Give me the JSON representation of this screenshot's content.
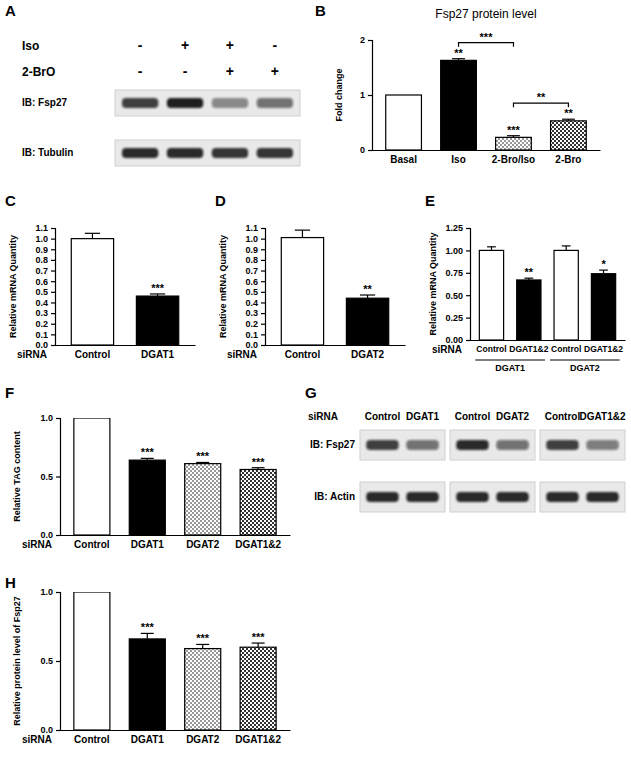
{
  "chart_data": [
    {
      "type": "blot",
      "panel": "A",
      "conditions": [
        {
          "label": "Iso",
          "states": [
            "-",
            "+",
            "+",
            "-"
          ]
        },
        {
          "label": "2-BrO",
          "states": [
            "-",
            "-",
            "+",
            "+"
          ]
        }
      ],
      "row_labels": [
        "IB: Fsp27",
        "IB: Tubulin"
      ],
      "blots": [
        {
          "rows": [
            {
              "intensities": [
                0.85,
                1.0,
                0.5,
                0.6
              ]
            },
            {
              "intensities": [
                0.95,
                0.95,
                0.9,
                0.9
              ]
            }
          ]
        }
      ]
    },
    {
      "type": "bar",
      "panel": "B",
      "title": "Fsp27 protein level",
      "ylabel": "Fold change",
      "categories": [
        "Basal",
        "Iso",
        "2-Bro/Iso",
        "2-Bro"
      ],
      "values": [
        1.0,
        1.63,
        0.23,
        0.53
      ],
      "errors": [
        null,
        0.03,
        0.03,
        0.03
      ],
      "significance": [
        null,
        "**",
        "***",
        "**"
      ],
      "comparisons": [
        {
          "between": [
            "Iso",
            "2-Bro/Iso"
          ],
          "label": "***"
        },
        {
          "between": [
            "2-Bro/Iso",
            "2-Bro"
          ],
          "label": "**"
        }
      ],
      "colors": [
        "#ffffff",
        "#000000",
        "#d9d9d9",
        "#333333"
      ],
      "ylim": [
        0,
        2
      ],
      "yticks": [
        0,
        1,
        2
      ]
    },
    {
      "type": "bar",
      "panel": "C",
      "ylabel": "Relative mRNA Quantity",
      "xlabel": "siRNA",
      "categories": [
        "Control",
        "DGAT1"
      ],
      "values": [
        1.0,
        0.46
      ],
      "errors": [
        0.05,
        0.02
      ],
      "significance": [
        null,
        "***"
      ],
      "colors": [
        "#ffffff",
        "#000000"
      ],
      "ylim": [
        0,
        1.1
      ],
      "yticks": [
        {
          "value": 0,
          "label": "0.0"
        },
        0.1,
        0.2,
        0.3,
        0.4,
        0.5,
        0.6,
        0.7,
        0.8,
        0.9,
        {
          "value": 1,
          "label": "1.0"
        },
        1.1
      ]
    },
    {
      "type": "bar",
      "panel": "D",
      "ylabel": "Relative mRNA Quantity",
      "xlabel": "siRNA",
      "categories": [
        "Control",
        "DGAT2"
      ],
      "values": [
        1.01,
        0.44
      ],
      "errors": [
        0.07,
        0.03
      ],
      "significance": [
        null,
        "**"
      ],
      "colors": [
        "#ffffff",
        "#000000"
      ],
      "ylim": [
        0,
        1.1
      ],
      "yticks": [
        {
          "value": 0,
          "label": "0.0"
        },
        0.1,
        0.2,
        0.3,
        0.4,
        0.5,
        0.6,
        0.7,
        0.8,
        0.9,
        {
          "value": 1,
          "label": "1.0"
        },
        1.1
      ]
    },
    {
      "type": "bar",
      "panel": "E",
      "ylabel": "Relative mRNA Quantity",
      "xlabel": "siRNA",
      "categories": [
        "Control",
        "DGAT1&2",
        "Control",
        "DGAT1&2"
      ],
      "groups": [
        "DGAT1",
        "DGAT1",
        "DGAT2",
        "DGAT2"
      ],
      "values": [
        1.0,
        0.67,
        1.0,
        0.74
      ],
      "errors": [
        0.04,
        0.02,
        0.05,
        0.04
      ],
      "significance": [
        null,
        "**",
        null,
        "*"
      ],
      "colors": [
        "#ffffff",
        "#000000",
        "#ffffff",
        "#000000"
      ],
      "ylim": [
        0,
        1.25
      ],
      "yticks": [
        {
          "value": 0,
          "label": "0.00"
        },
        0.25,
        {
          "value": 0.5,
          "label": "0.50"
        },
        0.75,
        {
          "value": 1,
          "label": "1.00"
        },
        1.25
      ]
    },
    {
      "type": "bar",
      "panel": "F",
      "ylabel": "Relative TAG content",
      "xlabel": "siRNA",
      "categories": [
        "Control",
        "DGAT1",
        "DGAT2",
        "DGAT1&2"
      ],
      "values": [
        1.0,
        0.64,
        0.61,
        0.56
      ],
      "errors": [
        null,
        0.015,
        0.01,
        0.015
      ],
      "significance": [
        null,
        "***",
        "***",
        "***"
      ],
      "colors": [
        "#ffffff",
        "#000000",
        "#d9d9d9",
        "#333333"
      ],
      "ylim": [
        0,
        1
      ],
      "yticks": [
        {
          "value": 0,
          "label": "0.0"
        },
        0.5,
        {
          "value": 1,
          "label": "1.0"
        }
      ]
    },
    {
      "type": "blot",
      "panel": "G",
      "xlabel": "siRNA",
      "row_labels": [
        "IB: Fsp27",
        "IB: Actin"
      ],
      "blots": [
        {
          "categories": [
            "Control",
            "DGAT1"
          ],
          "rows": [
            {
              "intensities": [
                0.85,
                0.6
              ]
            },
            {
              "intensities": [
                0.95,
                0.95
              ]
            }
          ]
        },
        {
          "categories": [
            "Control",
            "DGAT2"
          ],
          "rows": [
            {
              "intensities": [
                0.95,
                0.6
              ]
            },
            {
              "intensities": [
                0.95,
                0.95
              ]
            }
          ]
        },
        {
          "categories": [
            "Control",
            "DGAT1&2"
          ],
          "rows": [
            {
              "intensities": [
                0.85,
                0.55
              ]
            },
            {
              "intensities": [
                0.95,
                0.95
              ]
            }
          ]
        }
      ]
    },
    {
      "type": "bar",
      "panel": "H",
      "ylabel": "Relative protein level of Fsp27",
      "xlabel": "siRNA",
      "categories": [
        "Control",
        "DGAT1",
        "DGAT2",
        "DGAT1&2"
      ],
      "values": [
        1.0,
        0.66,
        0.59,
        0.6
      ],
      "errors": [
        null,
        0.04,
        0.03,
        0.03
      ],
      "significance": [
        null,
        "***",
        "***",
        "***"
      ],
      "colors": [
        "#ffffff",
        "#000000",
        "#d9d9d9",
        "#333333"
      ],
      "ylim": [
        0,
        1
      ],
      "yticks": [
        {
          "value": 0,
          "label": "0.0"
        },
        0.5,
        {
          "value": 1,
          "label": "1.0"
        }
      ]
    }
  ]
}
